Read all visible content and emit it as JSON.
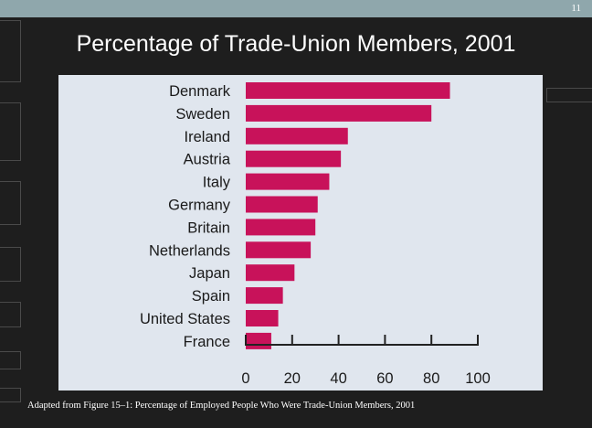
{
  "slide": {
    "page_number": "11",
    "title": "Percentage of Trade-Union Members, 2001",
    "caption": "Adapted from Figure 15–1: Percentage of Employed People Who Were Trade-Union Members, 2001"
  },
  "colors": {
    "bar": "#c8125a",
    "background": "#1e1e1e",
    "panel": "#e0e6ee",
    "top_band": "#8fa7ac"
  },
  "chart_data": {
    "type": "bar",
    "orientation": "horizontal",
    "categories": [
      "Denmark",
      "Sweden",
      "Ireland",
      "Austria",
      "Italy",
      "Germany",
      "Britain",
      "Netherlands",
      "Japan",
      "Spain",
      "United States",
      "France"
    ],
    "values": [
      88,
      80,
      44,
      41,
      36,
      31,
      30,
      28,
      21,
      16,
      14,
      11
    ],
    "xlim": [
      0,
      100
    ],
    "x_ticks": [
      0,
      20,
      40,
      60,
      80,
      100
    ],
    "grid": false,
    "legend": "none"
  }
}
